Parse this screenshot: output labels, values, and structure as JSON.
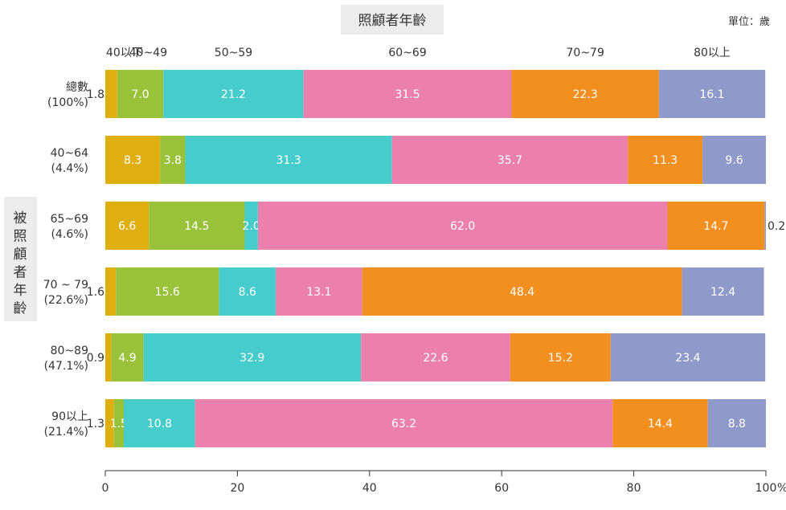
{
  "chart_data": {
    "type": "bar",
    "orientation": "horizontal",
    "stacked": true,
    "title": "照顧者年齡",
    "unit_note": "單位：歲",
    "ylabel": "被照顧者年齡",
    "xlim": [
      0,
      100
    ],
    "x_ticks": [
      0,
      20,
      40,
      60,
      80,
      100
    ],
    "x_tick_labels": [
      "0",
      "20",
      "40",
      "60",
      "80",
      "100"
    ],
    "x_unit": "%",
    "grid": false,
    "legend_position": "top",
    "categories": [
      {
        "label": "總數",
        "share": "(100%)"
      },
      {
        "label": "40~64",
        "share": "(4.4%)"
      },
      {
        "label": "65~69",
        "share": "(4.6%)"
      },
      {
        "label": "70 ~ 79",
        "share": "(22.6%)"
      },
      {
        "label": "80~89",
        "share": "(47.1%)"
      },
      {
        "label": "90以上",
        "share": "(21.4%)"
      }
    ],
    "series": [
      {
        "name": "40以下",
        "color": "#dfae0f",
        "values": [
          1.8,
          8.3,
          6.6,
          1.6,
          0.9,
          1.3
        ]
      },
      {
        "name": "40~49",
        "color": "#99c23a",
        "values": [
          7.0,
          3.8,
          14.5,
          15.6,
          4.9,
          1.5
        ]
      },
      {
        "name": "50~59",
        "color": "#45cccb",
        "values": [
          21.2,
          31.3,
          2.0,
          8.6,
          32.9,
          10.8
        ]
      },
      {
        "name": "60~69",
        "color": "#eb80ad",
        "values": [
          31.5,
          35.7,
          62.0,
          13.1,
          22.6,
          63.2
        ]
      },
      {
        "name": "70~79",
        "color": "#f28f1f",
        "values": [
          22.3,
          11.3,
          14.7,
          48.4,
          15.2,
          14.4
        ]
      },
      {
        "name": "80以上",
        "color": "#8f9acb",
        "values": [
          16.1,
          9.6,
          0.2,
          12.4,
          23.4,
          8.8
        ]
      }
    ]
  }
}
